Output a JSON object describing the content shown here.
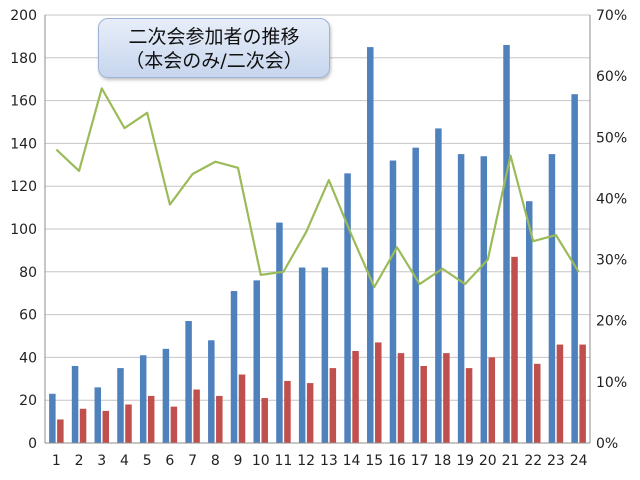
{
  "chart_data": {
    "type": "bar",
    "title": "二次会参加者の推移",
    "subtitle": "（本会のみ/二次会）",
    "categories": [
      "1",
      "2",
      "3",
      "4",
      "5",
      "6",
      "7",
      "8",
      "9",
      "10",
      "11",
      "12",
      "13",
      "14",
      "15",
      "16",
      "17",
      "18",
      "19",
      "20",
      "21",
      "22",
      "23",
      "24"
    ],
    "series": [
      {
        "values": [
          23,
          36,
          26,
          35,
          41,
          44,
          57,
          48,
          71,
          76,
          103,
          82,
          82,
          126,
          185,
          132,
          138,
          147,
          135,
          134,
          186,
          113,
          135,
          163
        ],
        "color": "#4f81bd",
        "axis": "left"
      },
      {
        "values": [
          11,
          16,
          15,
          18,
          22,
          17,
          25,
          22,
          32,
          21,
          29,
          28,
          35,
          43,
          47,
          42,
          36,
          42,
          35,
          40,
          87,
          37,
          46,
          46
        ],
        "color": "#c0504d",
        "axis": "left"
      },
      {
        "type": "line",
        "values": [
          48,
          44.5,
          58,
          51.5,
          54,
          39,
          44,
          46,
          45,
          27.5,
          28,
          34.5,
          43,
          34,
          25.5,
          32,
          26,
          28.5,
          26,
          30,
          47,
          33,
          34,
          28
        ],
        "color": "#9bbb59",
        "axis": "right",
        "unit": "%"
      }
    ],
    "ylim": [
      0,
      200
    ],
    "yticks": [
      "0",
      "20",
      "40",
      "60",
      "80",
      "100",
      "120",
      "140",
      "160",
      "180",
      "200"
    ],
    "y2lim": [
      0,
      70
    ],
    "y2ticks": [
      "0%",
      "10%",
      "20%",
      "30%",
      "40%",
      "50%",
      "60%",
      "70%"
    ],
    "grid": true,
    "legend": "none"
  }
}
